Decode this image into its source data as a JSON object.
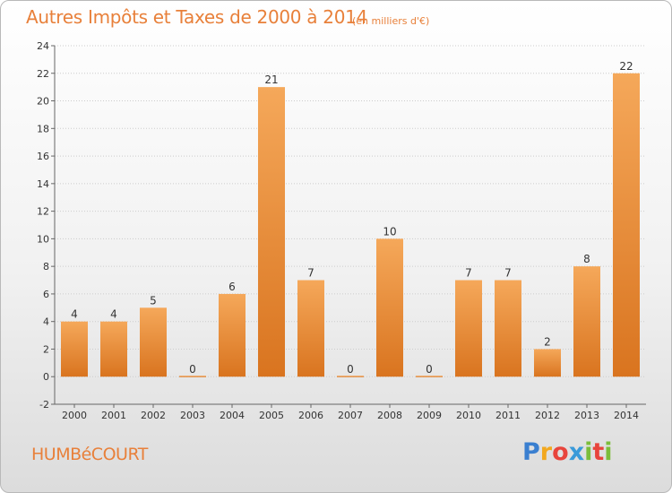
{
  "title": "Autres Impôts et Taxes de 2000 à 2014",
  "unit_note": "(en milliers d'€)",
  "commune": "HUMBéCOURT",
  "logo": {
    "text": "Proxiti",
    "letters": [
      {
        "ch": "P",
        "color": "#3a7fd0"
      },
      {
        "ch": "r",
        "color": "#f2a81f"
      },
      {
        "ch": "o",
        "color": "#e8453c"
      },
      {
        "ch": "x",
        "color": "#3a9ad9"
      },
      {
        "ch": "i",
        "color": "#7bbd3a"
      },
      {
        "ch": "t",
        "color": "#e8453c"
      },
      {
        "ch": "i",
        "color": "#7bbd3a"
      }
    ]
  },
  "colors": {
    "accent": "#e8803a",
    "bar_top": "#f5a85a",
    "bar_bottom": "#d9741f",
    "grid": "#cccccc",
    "axis": "#666666"
  },
  "chart_data": {
    "type": "bar",
    "categories": [
      "2000",
      "2001",
      "2002",
      "2003",
      "2004",
      "2005",
      "2006",
      "2007",
      "2008",
      "2009",
      "2010",
      "2011",
      "2012",
      "2013",
      "2014"
    ],
    "values": [
      4,
      4,
      5,
      0,
      6,
      21,
      7,
      0,
      10,
      0,
      7,
      7,
      2,
      8,
      22
    ],
    "title": "Autres Impôts et Taxes de 2000 à 2014",
    "xlabel": "",
    "ylabel": "",
    "ylim": [
      -2,
      24
    ],
    "yticks": [
      -2,
      0,
      2,
      4,
      6,
      8,
      10,
      12,
      14,
      16,
      18,
      20,
      22,
      24
    ],
    "grid": "horizontal dotted",
    "legend": "none"
  }
}
